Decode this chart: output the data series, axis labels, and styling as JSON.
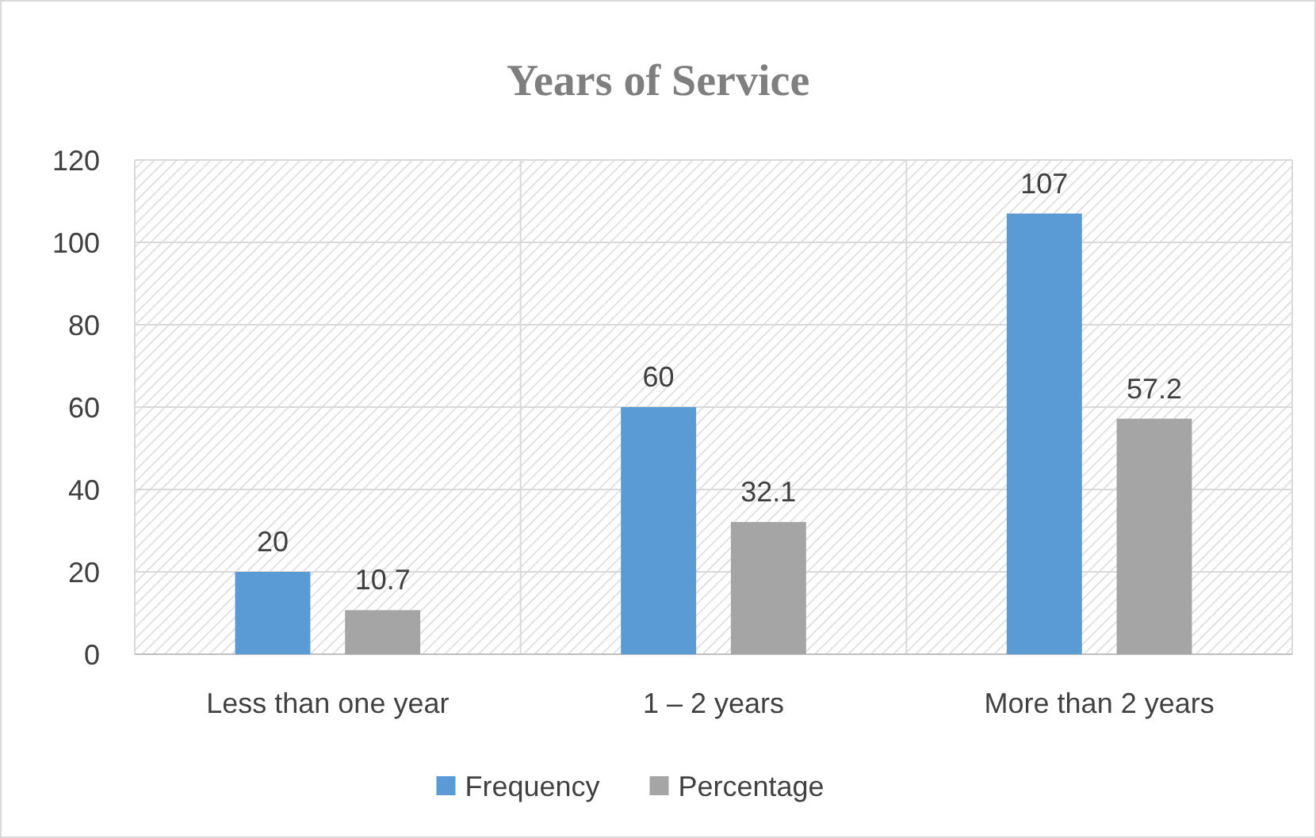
{
  "chart_data": {
    "type": "bar",
    "title": "Years of Service",
    "categories": [
      "Less than one year",
      "1 – 2 years",
      "More than 2 years"
    ],
    "series": [
      {
        "name": "Frequency",
        "color": "#5b9bd5",
        "values": [
          20,
          60,
          107
        ]
      },
      {
        "name": "Percentage",
        "color": "#a5a5a5",
        "values": [
          10.7,
          32.1,
          57.2
        ]
      }
    ],
    "ylim": [
      0,
      120
    ],
    "yticks": [
      0,
      20,
      40,
      60,
      80,
      100,
      120
    ],
    "grid": true,
    "legend": "bottom",
    "data_labels": true
  }
}
